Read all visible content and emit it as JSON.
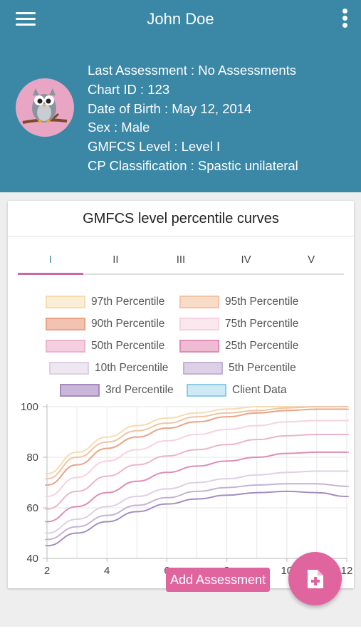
{
  "header": {
    "title": "John Doe",
    "bg_color": "#3a87a6",
    "menu_icon": "hamburger-menu-icon",
    "more_icon": "more-vertical-icon",
    "avatar_icon": "owl-avatar-icon"
  },
  "patient": {
    "last_assessment": "Last Assessment : No Assessments",
    "chart_id": "Chart ID : 123",
    "dob": "Date of Birth : May 12, 2014",
    "sex": "Sex : Male",
    "gmfcs_level": "GMFCS Level : Level I",
    "cp_class": "CP Classification : Spastic unilateral"
  },
  "card": {
    "title": "GMFCS level percentile curves",
    "tabs": [
      "I",
      "II",
      "III",
      "IV",
      "V"
    ],
    "active_tab": 0
  },
  "legend": [
    {
      "label": "97th Percentile",
      "fill": "#fbeed6",
      "stroke": "#f6dcb0"
    },
    {
      "label": "95th Percentile",
      "fill": "#f8dcc7",
      "stroke": "#f1c4a4"
    },
    {
      "label": "90th Percentile",
      "fill": "#f2c3b0",
      "stroke": "#e7a487"
    },
    {
      "label": "75th Percentile",
      "fill": "#fbe8ef",
      "stroke": "#f5d2df"
    },
    {
      "label": "50th Percentile",
      "fill": "#f5cfe0",
      "stroke": "#ecb4cc"
    },
    {
      "label": "25th Percentile",
      "fill": "#eebbd3",
      "stroke": "#de8db4"
    },
    {
      "label": "10th Percentile",
      "fill": "#eee6f1",
      "stroke": "#ddd0e4"
    },
    {
      "label": "5th Percentile",
      "fill": "#dccfe6",
      "stroke": "#c3b2d6"
    },
    {
      "label": "3rd Percentile",
      "fill": "#c9b6d9",
      "stroke": "#a48cc0"
    },
    {
      "label": "Client Data",
      "fill": "#cfeaf5",
      "stroke": "#8ccbe3"
    }
  ],
  "chart_data": {
    "type": "line",
    "x": [
      2,
      3,
      4,
      5,
      6,
      7,
      8,
      9,
      10,
      11,
      12
    ],
    "xticks": [
      "2",
      "4",
      "6",
      "8",
      "10",
      "12"
    ],
    "yticks": [
      "40",
      "60",
      "80",
      "100"
    ],
    "xlim": [
      2,
      12
    ],
    "ylim": [
      40,
      100
    ],
    "grid": true,
    "series": [
      {
        "name": "97th Percentile",
        "color": "#f6dcb0",
        "values": [
          73.5,
          82,
          88,
          92.5,
          95.5,
          97.5,
          99,
          100,
          100,
          100,
          100
        ]
      },
      {
        "name": "95th Percentile",
        "color": "#f1c4a4",
        "values": [
          71.5,
          80,
          86,
          90.5,
          93.5,
          96,
          97.5,
          98.5,
          99.5,
          100,
          100
        ]
      },
      {
        "name": "90th Percentile",
        "color": "#e7a487",
        "values": [
          69,
          77,
          83.5,
          88,
          91.5,
          94,
          96,
          97.5,
          98.5,
          99,
          99
        ]
      },
      {
        "name": "75th Percentile",
        "color": "#f5d2df",
        "values": [
          64.5,
          72,
          78.5,
          83,
          86.5,
          89,
          91,
          92.5,
          94,
          94.5,
          94.5
        ]
      },
      {
        "name": "50th Percentile",
        "color": "#ecb4cc",
        "values": [
          59.5,
          66.5,
          72.5,
          77,
          80.5,
          83,
          85,
          87,
          88.5,
          89,
          89
        ]
      },
      {
        "name": "25th Percentile",
        "color": "#de8db4",
        "values": [
          54.5,
          60.5,
          66,
          70.5,
          74,
          76.5,
          78.5,
          80,
          81.5,
          82,
          82
        ]
      },
      {
        "name": "10th Percentile",
        "color": "#ddd0e4",
        "values": [
          50,
          55.5,
          60.5,
          64.5,
          67.5,
          70,
          71.5,
          73,
          74,
          74.5,
          74.5
        ]
      },
      {
        "name": "5th Percentile",
        "color": "#c3b2d6",
        "values": [
          47.5,
          52.5,
          57,
          61,
          64,
          66.5,
          68,
          69,
          69.5,
          69.5,
          68.5
        ]
      },
      {
        "name": "3rd Percentile",
        "color": "#a48cc0",
        "values": [
          45,
          50,
          54.5,
          58.5,
          61.5,
          63.5,
          65,
          66,
          66.5,
          66,
          64.5
        ]
      }
    ]
  },
  "fab": {
    "label": "Add Assessment",
    "icon": "add-document-icon",
    "color": "#e0659f"
  }
}
